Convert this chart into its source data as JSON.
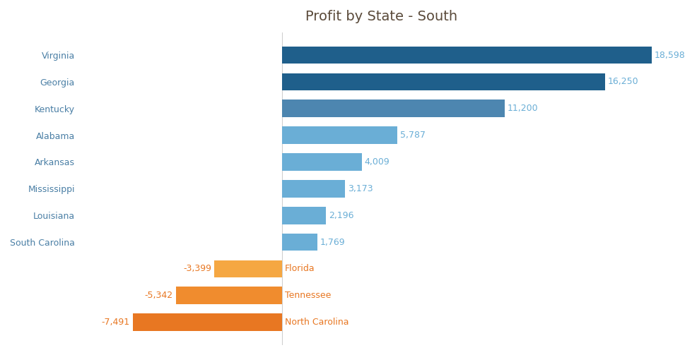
{
  "title": "Profit by State - South",
  "states": [
    "Virginia",
    "Georgia",
    "Kentucky",
    "Alabama",
    "Arkansas",
    "Mississippi",
    "Louisiana",
    "South Carolina",
    "Florida",
    "Tennessee",
    "North Carolina"
  ],
  "values": [
    18598,
    16250,
    11200,
    5787,
    4009,
    3173,
    2196,
    1769,
    -3399,
    -5342,
    -7491
  ],
  "bar_colors": [
    "#1f5f8b",
    "#1f5f8b",
    "#4d86b0",
    "#6aaed6",
    "#6aaed6",
    "#6aaed6",
    "#6aaed6",
    "#6aaed6",
    "#f5a742",
    "#f08c2e",
    "#e87722"
  ],
  "pos_label_color": "#6aaed6",
  "neg_label_color": "#e87722",
  "title_color": "#5a4a3a",
  "state_label_color": "#4a7fa5",
  "background_color": "#ffffff",
  "title_fontsize": 14,
  "value_fontsize": 9,
  "state_fontsize": 9,
  "xlim_min": -10000,
  "xlim_max": 20000
}
